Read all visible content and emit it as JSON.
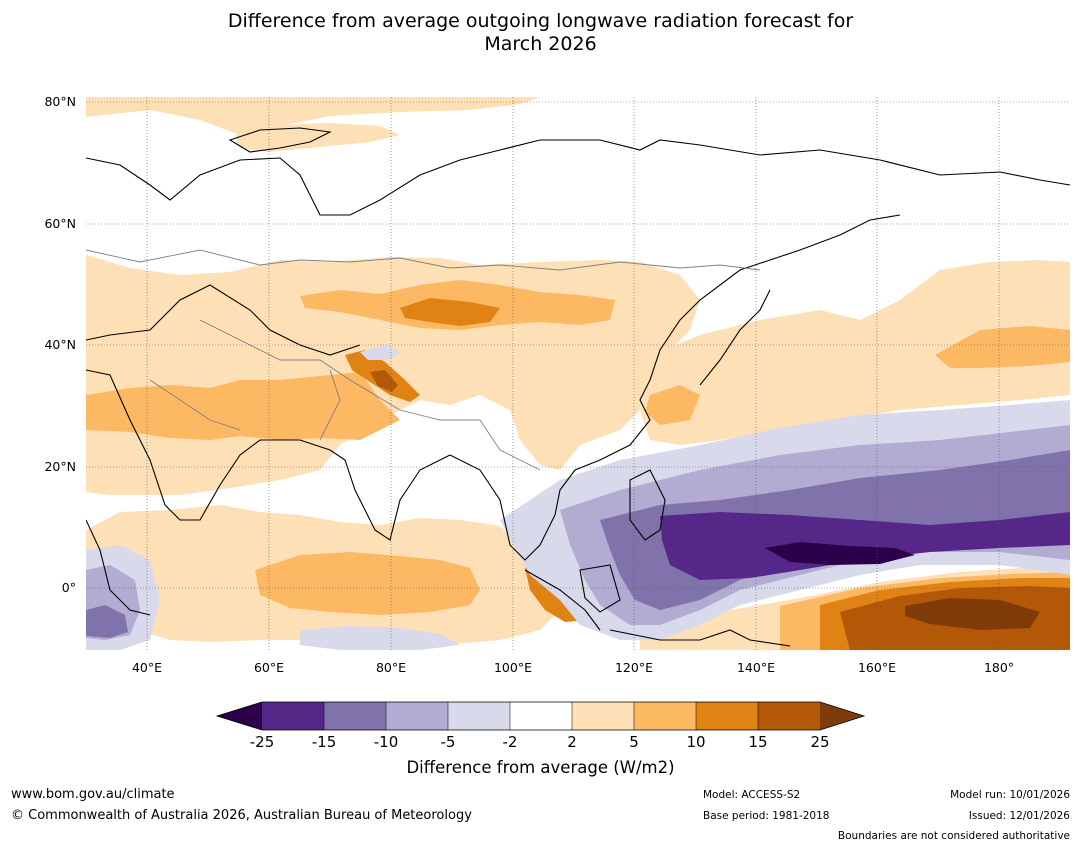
{
  "title": {
    "line1": "Difference from average outgoing longwave radiation forecast for",
    "line2": "March 2026"
  },
  "map": {
    "lat_labels": [
      "80°N",
      "60°N",
      "40°N",
      "20°N",
      "0°"
    ],
    "lat_values": [
      80,
      60,
      40,
      20,
      0
    ],
    "lon_labels": [
      "40°E",
      "60°E",
      "80°E",
      "100°E",
      "120°E",
      "140°E",
      "160°E",
      "180°"
    ],
    "lon_values": [
      40,
      60,
      80,
      100,
      120,
      140,
      160,
      180
    ],
    "extent": {
      "lon_min": 30,
      "lon_max": 191,
      "lat_min": -10,
      "lat_max": 81
    }
  },
  "colorbar": {
    "title": "Difference from average (W/m2)",
    "ticks": [
      "-25",
      "-15",
      "-10",
      "-5",
      "-2",
      "2",
      "5",
      "10",
      "15",
      "25"
    ],
    "colors": {
      "below_-25": "#2d004b",
      "-25_-15": "#542788",
      "-15_-10": "#8073ac",
      "-10_-5": "#b2abd2",
      "-5_-2": "#d8daeb",
      "-2_2": "#ffffff",
      "2_5": "#fee0b6",
      "5_10": "#fdb863",
      "10_15": "#e08214",
      "15_25": "#b35806",
      "above_25": "#7f3b08"
    }
  },
  "footer": {
    "website": "www.bom.gov.au/climate",
    "copyright": "© Commonwealth of Australia 2026, Australian Bureau of Meteorology",
    "model": "Model: ACCESS-S2",
    "base_period": "Base period: 1981-2018",
    "model_run": "Model run: 10/01/2026",
    "issued": "Issued: 12/01/2026",
    "disclaimer": "Boundaries are not considered authoritative"
  }
}
